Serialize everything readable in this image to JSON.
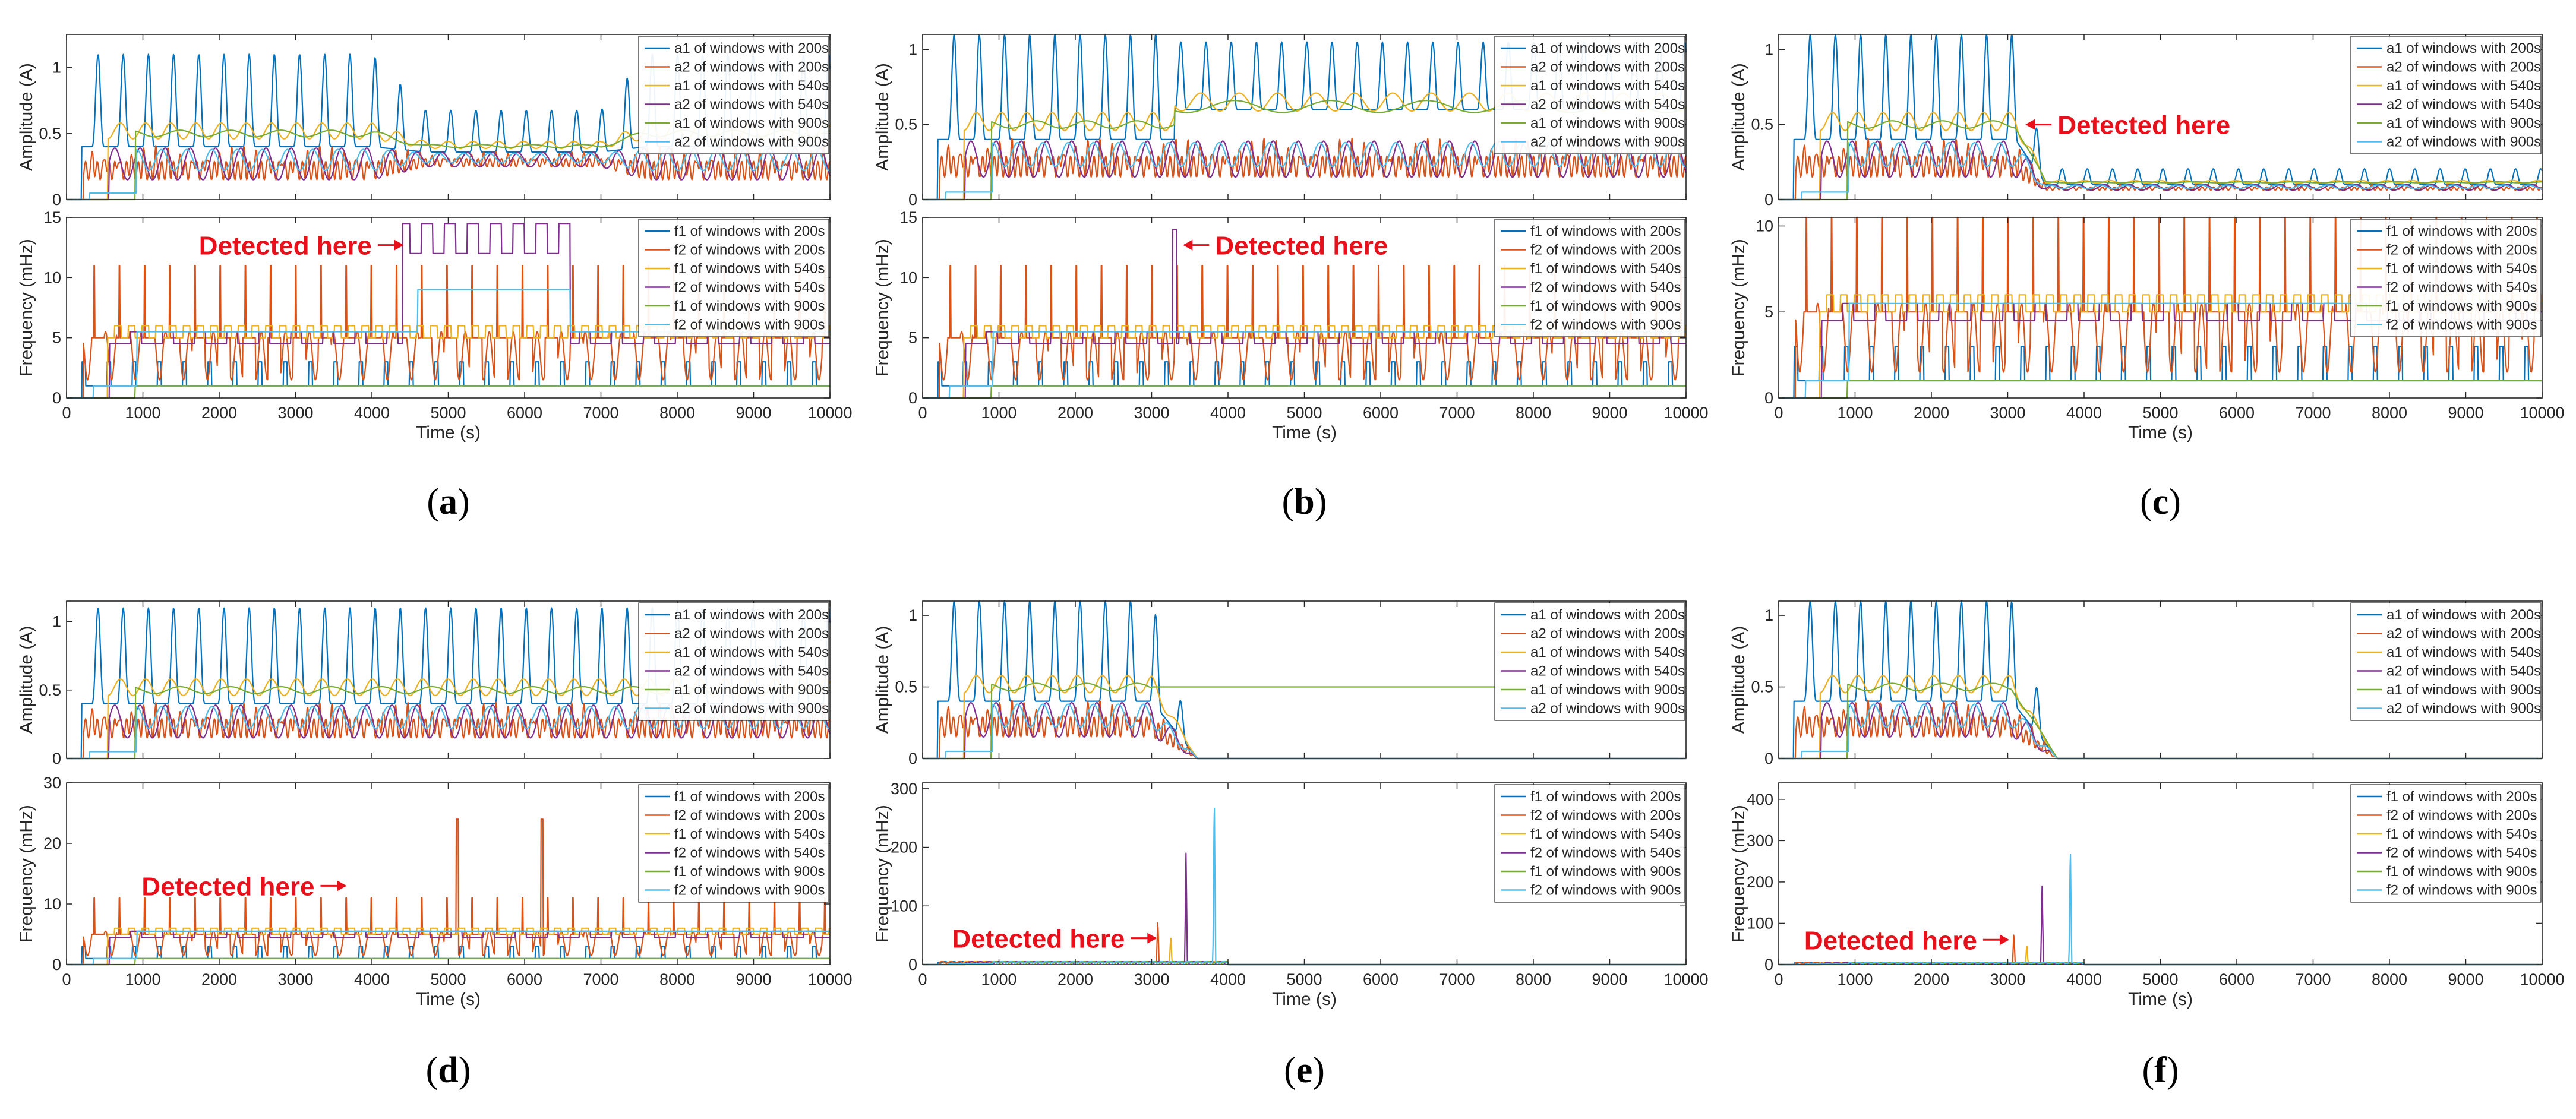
{
  "colors": {
    "blue": "#0072bd",
    "orange": "#d95319",
    "yellow": "#edb120",
    "purple": "#7e2f8e",
    "green": "#77ac30",
    "cyan": "#4dbeee",
    "annotation": "#e8101a"
  },
  "legend_amplitude": [
    "a1 of windows with 200s",
    "a2 of windows with 200s",
    "a1 of windows with 540s",
    "a2 of windows with 540s",
    "a1 of windows with 900s",
    "a2 of windows with 900s"
  ],
  "legend_frequency": [
    "f1 of windows with 200s",
    "f2 of windows with 200s",
    "f1 of windows with 540s",
    "f2 of windows with 540s",
    "f1 of windows with 900s",
    "f2 of windows with 900s"
  ],
  "ylabel_amplitude": "Amplitude (A)",
  "ylabel_frequency": "Frequency (mHz)",
  "xlabel": "Time (s)",
  "annotation_text": "Detected here",
  "chart_data": [
    {
      "label": "(a)",
      "type": "line",
      "x_range": [
        0,
        10000
      ],
      "x_ticks": [
        0,
        1000,
        2000,
        3000,
        4000,
        5000,
        6000,
        7000,
        8000,
        9000,
        10000
      ],
      "amplitude": {
        "ylim": [
          0,
          1.25
        ],
        "yticks": [
          0,
          0.5,
          1
        ],
        "scenario": "recovering",
        "event_time": 4600
      },
      "frequency": {
        "ylim": [
          0,
          15
        ],
        "yticks": [
          0,
          5,
          10,
          15
        ],
        "scenario": "recovering",
        "event_time": 4600
      },
      "annotation": {
        "panel": "frequency",
        "text": "Detected here",
        "time": 4450,
        "value": 12.7,
        "arrow": "right"
      }
    },
    {
      "label": "(b)",
      "type": "line",
      "x_range": [
        0,
        10000
      ],
      "x_ticks": [
        0,
        1000,
        2000,
        3000,
        4000,
        5000,
        6000,
        7000,
        8000,
        9000,
        10000
      ],
      "amplitude": {
        "ylim": [
          0,
          1.1
        ],
        "yticks": [
          0,
          0.5,
          1
        ],
        "scenario": "shift",
        "event_time": 3300
      },
      "frequency": {
        "ylim": [
          0,
          15
        ],
        "yticks": [
          0,
          5,
          10,
          15
        ],
        "scenario": "shift",
        "event_time": 3300
      },
      "annotation": {
        "panel": "frequency",
        "text": "Detected here",
        "time": 3380,
        "value": 12.7,
        "arrow": "left"
      }
    },
    {
      "label": "(c)",
      "type": "line",
      "x_range": [
        0,
        10000
      ],
      "x_ticks": [
        0,
        1000,
        2000,
        3000,
        4000,
        5000,
        6000,
        7000,
        8000,
        9000,
        10000
      ],
      "amplitude": {
        "ylim": [
          0,
          1.1
        ],
        "yticks": [
          0,
          0.5,
          1
        ],
        "scenario": "damp",
        "event_time": 3100
      },
      "frequency": {
        "ylim": [
          0,
          10.5
        ],
        "yticks": [
          0,
          5,
          10
        ],
        "scenario": "damp",
        "event_time": 3100
      },
      "annotation": {
        "panel": "amplitude",
        "text": "Detected here",
        "time": 3200,
        "value": 0.5,
        "arrow": "left"
      }
    },
    {
      "label": "(d)",
      "type": "line",
      "x_range": [
        0,
        10000
      ],
      "x_ticks": [
        0,
        1000,
        2000,
        3000,
        4000,
        5000,
        6000,
        7000,
        8000,
        9000,
        10000
      ],
      "amplitude": {
        "ylim": [
          0,
          1.15
        ],
        "yticks": [
          0,
          0.5,
          1
        ],
        "scenario": "steady",
        "event_time": 3800
      },
      "frequency": {
        "ylim": [
          0,
          30
        ],
        "yticks": [
          0,
          10,
          20,
          30
        ],
        "scenario": "steady",
        "event_time": 3800
      },
      "annotation": {
        "panel": "frequency",
        "text": "Detected here",
        "time": 3700,
        "value": 13,
        "arrow": "right"
      }
    },
    {
      "label": "(e)",
      "type": "line",
      "x_range": [
        0,
        10000
      ],
      "x_ticks": [
        0,
        1000,
        2000,
        3000,
        4000,
        5000,
        6000,
        7000,
        8000,
        9000,
        10000
      ],
      "amplitude": {
        "ylim": [
          0,
          1.1
        ],
        "yticks": [
          0,
          0.5,
          1
        ],
        "scenario": "decay",
        "event_time": 3000
      },
      "frequency": {
        "ylim": [
          0,
          310
        ],
        "yticks": [
          0,
          100,
          200,
          300
        ],
        "scenario": "decay",
        "event_time": 3100
      },
      "annotation": {
        "panel": "frequency",
        "text": "Detected here",
        "time": 3100,
        "value": 45,
        "arrow": "right"
      }
    },
    {
      "label": "(f)",
      "type": "line",
      "x_range": [
        0,
        10000
      ],
      "x_ticks": [
        0,
        1000,
        2000,
        3000,
        4000,
        5000,
        6000,
        7000,
        8000,
        9000,
        10000
      ],
      "amplitude": {
        "ylim": [
          0,
          1.1
        ],
        "yticks": [
          0,
          0.5,
          1
        ],
        "scenario": "decay",
        "event_time": 3050
      },
      "frequency": {
        "ylim": [
          0,
          440
        ],
        "yticks": [
          0,
          100,
          200,
          300,
          400
        ],
        "scenario": "decay",
        "event_time": 3100
      },
      "annotation": {
        "panel": "frequency",
        "text": "Detected here",
        "time": 3050,
        "value": 60,
        "arrow": "right"
      }
    }
  ]
}
